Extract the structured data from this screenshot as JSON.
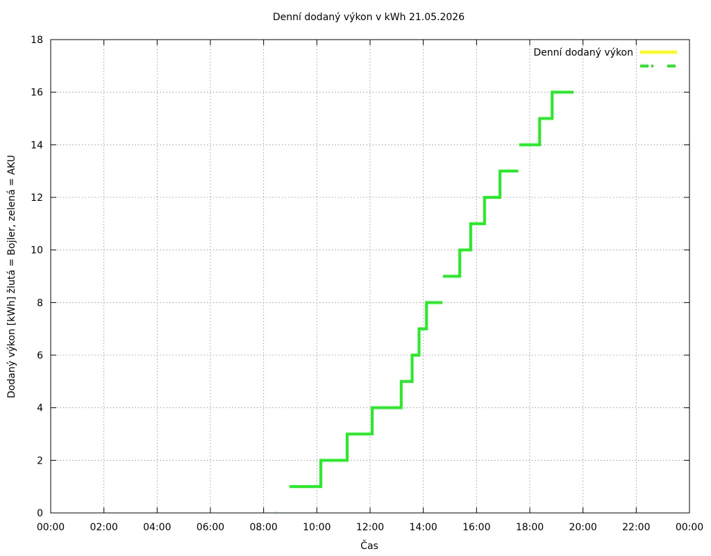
{
  "chart_data": {
    "type": "step",
    "title": "Denní dodaný výkon v kWh 21.05.2026",
    "x_label": "Čas",
    "y_label": "Dodaný výkon [kWh]  žlutá = Bojler, zelená = AKU",
    "xlim": [
      0,
      24
    ],
    "ylim": [
      0,
      18
    ],
    "xticks": [
      {
        "value": 0,
        "label": "00:00"
      },
      {
        "value": 2,
        "label": "02:00"
      },
      {
        "value": 4,
        "label": "04:00"
      },
      {
        "value": 6,
        "label": "06:00"
      },
      {
        "value": 8,
        "label": "08:00"
      },
      {
        "value": 10,
        "label": "10:00"
      },
      {
        "value": 12,
        "label": "12:00"
      },
      {
        "value": 14,
        "label": "14:00"
      },
      {
        "value": 16,
        "label": "16:00"
      },
      {
        "value": 18,
        "label": "18:00"
      },
      {
        "value": 20,
        "label": "20:00"
      },
      {
        "value": 22,
        "label": "22:00"
      },
      {
        "value": 24,
        "label": "00:00"
      }
    ],
    "yticks": [
      0,
      2,
      4,
      6,
      8,
      10,
      12,
      14,
      16,
      18
    ],
    "grid": true,
    "legend": "top-right",
    "x": [
      8.48,
      8.5,
      8.7,
      8.97,
      10.15,
      11.14,
      12.08,
      13.17,
      13.58,
      13.84,
      14.12,
      14.72,
      14.73,
      14.74,
      15.37,
      15.78,
      16.3,
      16.88,
      17.57,
      17.58,
      17.6,
      18.37,
      18.84,
      19.65
    ],
    "series": [
      {
        "name": "Denní dodaný výkon",
        "color": "#ffff00",
        "values": [
          null,
          null,
          null,
          null,
          null,
          null,
          null,
          null,
          null,
          null,
          null,
          null,
          null,
          null,
          null,
          null,
          null,
          null,
          null,
          null,
          null,
          null,
          null,
          null
        ]
      },
      {
        "color": "#22ee22",
        "values": [
          0,
          0,
          null,
          1,
          2,
          3,
          4,
          5,
          6,
          7,
          8,
          8,
          null,
          9,
          10,
          11,
          12,
          13,
          13,
          null,
          14,
          15,
          16,
          16
        ]
      }
    ]
  }
}
